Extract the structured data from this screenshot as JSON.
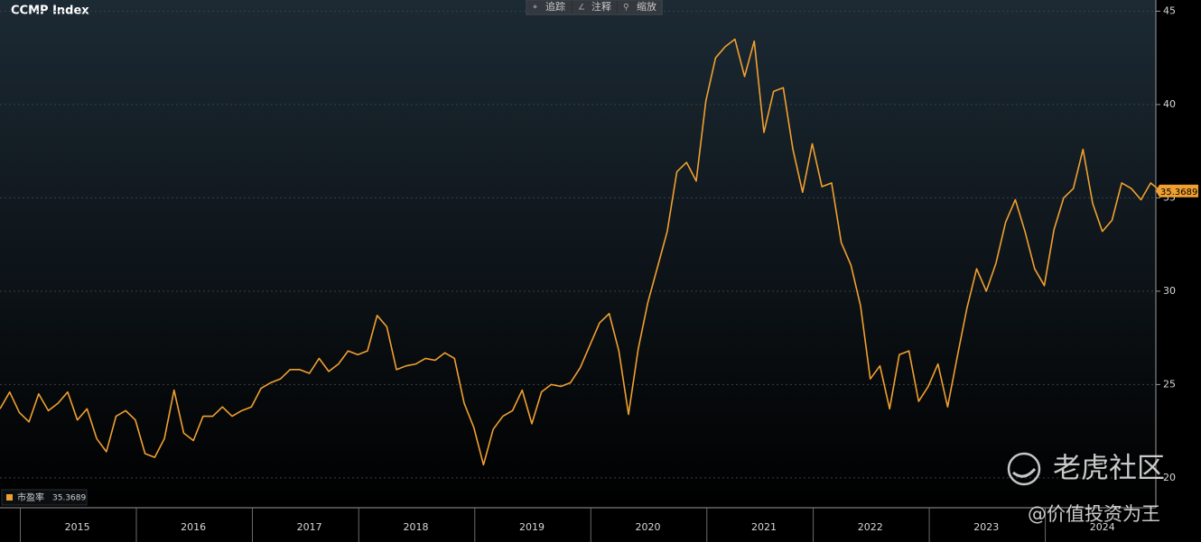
{
  "chart_data": {
    "type": "line",
    "title": "CCMP Index",
    "categories": [
      null,
      null,
      null,
      null,
      null,
      null,
      null,
      null,
      "2015",
      null,
      null,
      null,
      null,
      null,
      null,
      null,
      null,
      null,
      null,
      null,
      "2016",
      null,
      null,
      null,
      null,
      null,
      null,
      null,
      null,
      null,
      null,
      null,
      "2017",
      null,
      null,
      null,
      null,
      null,
      null,
      null,
      null,
      null,
      null,
      "2018",
      null,
      null,
      null,
      null,
      null,
      null,
      null,
      null,
      null,
      null,
      null,
      "2019",
      null,
      null,
      null,
      null,
      null,
      null,
      null,
      null,
      null,
      null,
      null,
      "2020",
      null,
      null,
      null,
      null,
      null,
      null,
      null,
      null,
      null,
      null,
      null,
      "2021",
      null,
      null,
      null,
      null,
      null,
      null,
      null,
      null,
      null,
      null,
      "2022",
      null,
      null,
      null,
      null,
      null,
      null,
      null,
      null,
      null,
      null,
      null,
      "2023",
      null,
      null,
      null,
      null,
      null,
      null,
      null,
      null,
      null,
      null,
      null,
      "2024",
      null,
      null,
      null,
      null,
      null,
      null
    ],
    "series": [
      {
        "name": "市盈率",
        "color": "#f0a030",
        "values": [
          23.7,
          24.6,
          23.5,
          23.0,
          24.5,
          23.6,
          24.0,
          24.6,
          23.1,
          23.7,
          22.1,
          21.4,
          23.3,
          23.6,
          23.1,
          21.3,
          21.1,
          22.1,
          24.7,
          22.4,
          22.0,
          23.3,
          23.3,
          23.8,
          23.3,
          23.6,
          23.8,
          24.8,
          25.1,
          25.3,
          25.8,
          25.8,
          25.6,
          26.4,
          25.7,
          26.1,
          26.8,
          26.6,
          26.8,
          28.7,
          28.1,
          25.8,
          26.0,
          26.1,
          26.4,
          26.3,
          26.7,
          26.4,
          24.0,
          22.7,
          20.7,
          22.6,
          23.3,
          23.6,
          24.7,
          22.9,
          24.6,
          25.0,
          24.9,
          25.1,
          25.9,
          27.1,
          28.3,
          28.8,
          26.8,
          23.4,
          26.9,
          29.4,
          31.3,
          33.2,
          36.4,
          36.9,
          35.9,
          40.2,
          42.5,
          43.1,
          43.5,
          41.5,
          43.4,
          38.5,
          40.7,
          40.9,
          37.6,
          35.3,
          37.9,
          35.6,
          35.8,
          32.6,
          31.4,
          29.2,
          25.3,
          26.0,
          23.7,
          26.6,
          26.8,
          24.1,
          24.9,
          26.1,
          23.8,
          26.5,
          29.1,
          31.2,
          30.0,
          31.5,
          33.7,
          34.9,
          33.2,
          31.2,
          30.3,
          33.3,
          35.0,
          35.5,
          37.6,
          34.7,
          33.2,
          33.8,
          35.8,
          35.5,
          34.9,
          35.8,
          35.3689
        ]
      }
    ],
    "ylim": [
      18.4,
      45.6
    ],
    "yticks": [
      20,
      25,
      30,
      35,
      40,
      45
    ],
    "grid": true
  },
  "toolbar": [
    "追踪",
    "注释",
    "缩放"
  ],
  "watermark": {
    "brand": "老虎社区",
    "author": "@价值投资为王"
  }
}
